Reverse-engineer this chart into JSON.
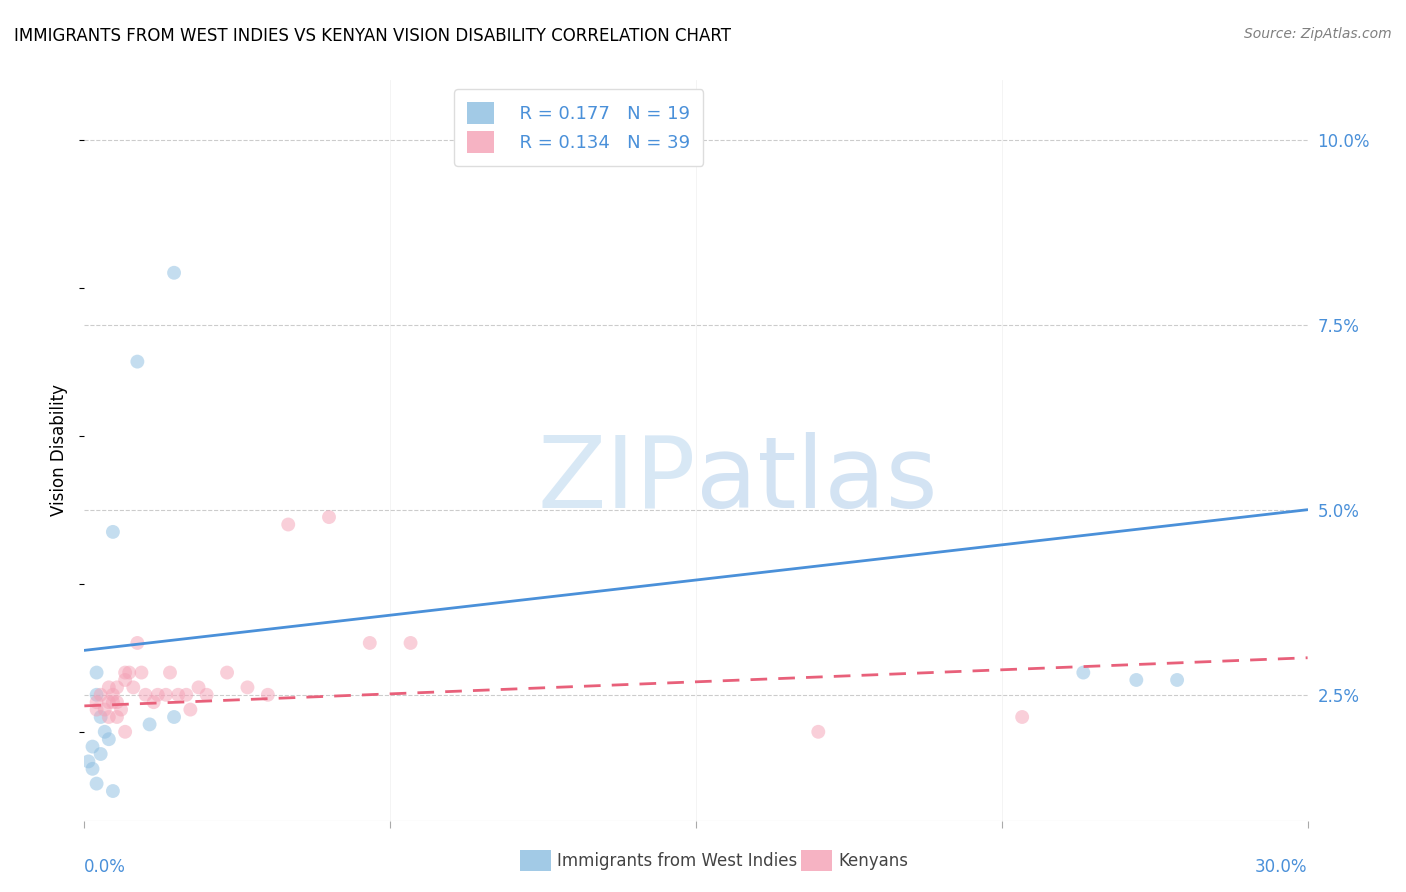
{
  "title": "IMMIGRANTS FROM WEST INDIES VS KENYAN VISION DISABILITY CORRELATION CHART",
  "source": "Source: ZipAtlas.com",
  "ylabel": "Vision Disability",
  "ytick_values": [
    0.025,
    0.05,
    0.075,
    0.1
  ],
  "ytick_labels": [
    "2.5%",
    "5.0%",
    "7.5%",
    "10.0%"
  ],
  "xlim": [
    0.0,
    0.3
  ],
  "ylim": [
    0.008,
    0.108
  ],
  "legend_r_blue": "R = 0.177",
  "legend_n_blue": "N = 19",
  "legend_r_pink": "R = 0.134",
  "legend_n_pink": "N = 39",
  "blue_color": "#8bbde0",
  "pink_color": "#f4a0b5",
  "blue_line_color": "#4a90d9",
  "pink_line_color": "#e8607a",
  "tick_label_color": "#4a90d9",
  "blue_scatter_x": [
    0.007,
    0.013,
    0.022,
    0.003,
    0.003,
    0.004,
    0.005,
    0.006,
    0.004,
    0.016,
    0.022,
    0.245,
    0.258,
    0.268,
    0.002,
    0.003,
    0.007,
    0.001,
    0.002
  ],
  "blue_scatter_y": [
    0.047,
    0.07,
    0.082,
    0.028,
    0.025,
    0.022,
    0.02,
    0.019,
    0.017,
    0.021,
    0.022,
    0.028,
    0.027,
    0.027,
    0.015,
    0.013,
    0.012,
    0.016,
    0.018
  ],
  "pink_scatter_x": [
    0.003,
    0.004,
    0.005,
    0.006,
    0.006,
    0.007,
    0.007,
    0.008,
    0.008,
    0.009,
    0.01,
    0.01,
    0.011,
    0.012,
    0.013,
    0.014,
    0.015,
    0.017,
    0.018,
    0.02,
    0.021,
    0.023,
    0.025,
    0.026,
    0.028,
    0.03,
    0.035,
    0.04,
    0.045,
    0.05,
    0.06,
    0.07,
    0.08,
    0.23,
    0.18,
    0.003,
    0.006,
    0.008,
    0.01
  ],
  "pink_scatter_y": [
    0.024,
    0.025,
    0.023,
    0.026,
    0.024,
    0.024,
    0.025,
    0.026,
    0.024,
    0.023,
    0.028,
    0.027,
    0.028,
    0.026,
    0.032,
    0.028,
    0.025,
    0.024,
    0.025,
    0.025,
    0.028,
    0.025,
    0.025,
    0.023,
    0.026,
    0.025,
    0.028,
    0.026,
    0.025,
    0.048,
    0.049,
    0.032,
    0.032,
    0.022,
    0.02,
    0.023,
    0.022,
    0.022,
    0.02
  ],
  "blue_trendline_x": [
    0.0,
    0.3
  ],
  "blue_trendline_y": [
    0.031,
    0.05
  ],
  "pink_trendline_x": [
    0.0,
    0.3
  ],
  "pink_trendline_y": [
    0.0235,
    0.03
  ],
  "watermark_zip": "ZIP",
  "watermark_atlas": "atlas",
  "background_color": "#ffffff",
  "grid_color": "#cccccc",
  "scatter_size": 100,
  "scatter_alpha": 0.5,
  "bottom_legend_label1": "Immigrants from West Indies",
  "bottom_legend_label2": "Kenyans"
}
